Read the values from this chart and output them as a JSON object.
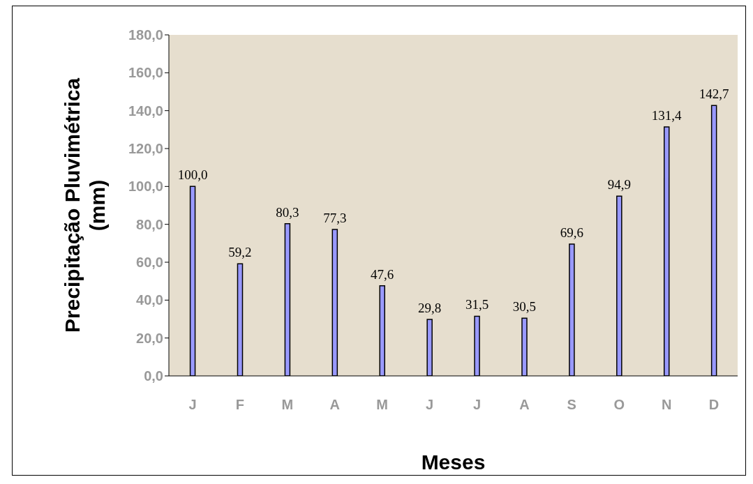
{
  "chart_data": {
    "type": "bar",
    "xlabel": "Meses",
    "ylabel": "Precipitação Pluvimétrica (mm)",
    "categories": [
      "J",
      "F",
      "M",
      "A",
      "M",
      "J",
      "J",
      "A",
      "S",
      "O",
      "N",
      "D"
    ],
    "values": [
      100.0,
      59.2,
      80.3,
      77.3,
      47.6,
      29.8,
      31.5,
      30.5,
      69.6,
      94.9,
      131.4,
      142.7
    ],
    "value_labels": [
      "100,0",
      "59,2",
      "80,3",
      "77,3",
      "47,6",
      "29,8",
      "31,5",
      "30,5",
      "69,6",
      "94,9",
      "131,4",
      "142,7"
    ],
    "color": "#9999ff",
    "ylim": [
      0,
      180
    ],
    "yticks": [
      {
        "value": 0,
        "label": "0,0"
      },
      {
        "value": 20,
        "label": "20,0"
      },
      {
        "value": 40,
        "label": "40,0"
      },
      {
        "value": 60,
        "label": "60,0"
      },
      {
        "value": 80,
        "label": "80,0"
      },
      {
        "value": 100,
        "label": "100,0"
      },
      {
        "value": 120,
        "label": "120,0"
      },
      {
        "value": 140,
        "label": "140,0"
      },
      {
        "value": 160,
        "label": "160,0"
      },
      {
        "value": 180,
        "label": "180,0"
      }
    ],
    "grid": false,
    "legend": false
  }
}
